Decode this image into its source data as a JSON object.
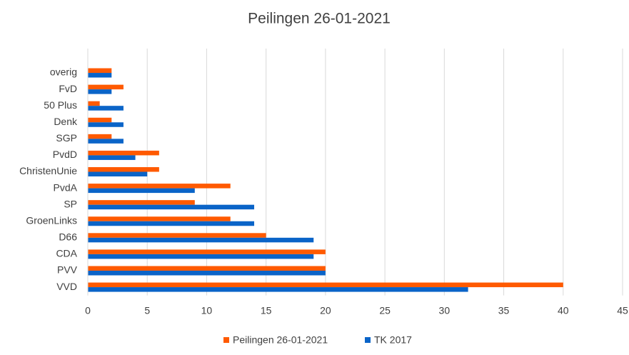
{
  "chart_data": {
    "type": "bar",
    "orientation": "horizontal",
    "title": "Peilingen 26-01-2021",
    "categories": [
      "VVD",
      "PVV",
      "CDA",
      "D66",
      "GroenLinks",
      "SP",
      "PvdA",
      "ChristenUnie",
      "PvdD",
      "SGP",
      "Denk",
      "50 Plus",
      "FvD",
      "overig"
    ],
    "series": [
      {
        "name": "Peilingen 26-01-2021",
        "color": "#ff5a00",
        "values": [
          40,
          20,
          20,
          15,
          12,
          9,
          12,
          6,
          6,
          2,
          2,
          1,
          3,
          2
        ]
      },
      {
        "name": "TK 2017",
        "color": "#0a64c8",
        "values": [
          32,
          20,
          19,
          19,
          14,
          14,
          9,
          5,
          4,
          3,
          3,
          3,
          2,
          2
        ]
      }
    ],
    "xlim": [
      0,
      45
    ],
    "xticks": [
      0,
      5,
      10,
      15,
      20,
      25,
      30,
      35,
      40,
      45
    ],
    "grid": true,
    "legend": "bottom"
  }
}
